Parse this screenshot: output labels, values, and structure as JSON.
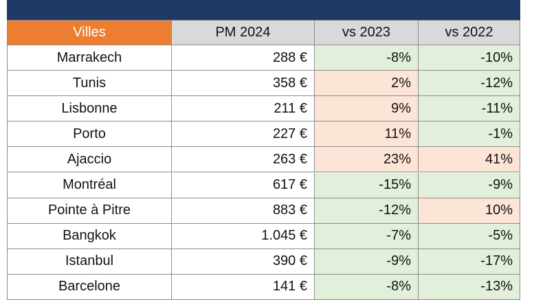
{
  "table": {
    "header": [
      "Villes",
      "PM 2024",
      "vs 2023",
      "vs 2022"
    ],
    "rows": [
      [
        "Marrakech",
        "288 €",
        "-8%",
        "-10%"
      ],
      [
        "Tunis",
        "358 €",
        "2%",
        "-12%"
      ],
      [
        "Lisbonne",
        "211 €",
        "9%",
        "-11%"
      ],
      [
        "Porto",
        "227 €",
        "11%",
        "-1%"
      ],
      [
        "Ajaccio",
        "263 €",
        "23%",
        "41%"
      ],
      [
        "Montréal",
        "617 €",
        "-15%",
        "-9%"
      ],
      [
        "Pointe à Pitre",
        "883 €",
        "-12%",
        "10%"
      ],
      [
        "Bangkok",
        "1.045 €",
        "-7%",
        "-5%"
      ],
      [
        "Istanbul",
        "390 €",
        "-9%",
        "-17%"
      ],
      [
        "Barcelone",
        "141 €",
        "-8%",
        "-13%"
      ]
    ],
    "highlight": {
      "positive": "#fce4d6",
      "negative": "#e2efda"
    }
  }
}
